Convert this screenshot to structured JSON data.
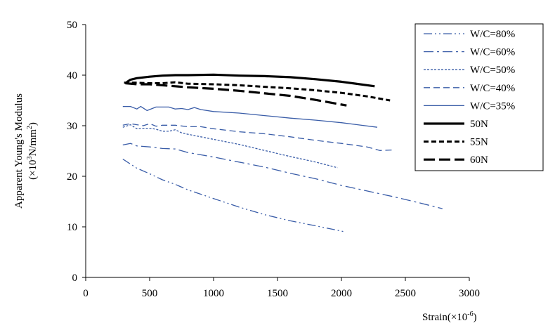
{
  "chart_data": {
    "type": "line",
    "title": "",
    "xlabel": {
      "base": "Strain(×10",
      "sup": "-6",
      "tail": ")"
    },
    "ylabel": {
      "line1": "Apparent  Young's Modulus",
      "line2_base": "(×10",
      "line2_sup1": "3",
      "line2_mid": "N/mm",
      "line2_sup2": "2",
      "line2_tail": ")"
    },
    "xlim": [
      0,
      3000
    ],
    "ylim": [
      0,
      50
    ],
    "xticks": [
      "0",
      "500",
      "1000",
      "1500",
      "2000",
      "2500",
      "3000"
    ],
    "yticks": [
      "0",
      "10",
      "20",
      "30",
      "40",
      "50"
    ],
    "grid": false,
    "legend_position": "top-right",
    "series": [
      {
        "name": "W/C=80%",
        "color": "#3a5da8",
        "style": "dashdotdot",
        "points": [
          [
            290,
            23.4
          ],
          [
            400,
            21.6
          ],
          [
            500,
            20.5
          ],
          [
            600,
            19.3
          ],
          [
            700,
            18.4
          ],
          [
            800,
            17.3
          ],
          [
            1000,
            15.6
          ],
          [
            1200,
            13.9
          ],
          [
            1400,
            12.4
          ],
          [
            1600,
            11.2
          ],
          [
            1800,
            10.2
          ],
          [
            2030,
            9.0
          ]
        ]
      },
      {
        "name": "W/C=60%",
        "color": "#3a5da8",
        "style": "dashdot",
        "points": [
          [
            290,
            26.2
          ],
          [
            350,
            26.5
          ],
          [
            400,
            26.0
          ],
          [
            500,
            25.8
          ],
          [
            600,
            25.5
          ],
          [
            700,
            25.4
          ],
          [
            800,
            24.7
          ],
          [
            1000,
            23.8
          ],
          [
            1200,
            22.8
          ],
          [
            1400,
            21.8
          ],
          [
            1600,
            20.6
          ],
          [
            1800,
            19.5
          ],
          [
            2000,
            18.2
          ],
          [
            2200,
            17.1
          ],
          [
            2400,
            16.0
          ],
          [
            2600,
            14.8
          ],
          [
            2790,
            13.6
          ]
        ]
      },
      {
        "name": "W/C=50%",
        "color": "#3a5da8",
        "style": "dotted",
        "points": [
          [
            290,
            29.7
          ],
          [
            350,
            30.2
          ],
          [
            400,
            29.4
          ],
          [
            450,
            29.5
          ],
          [
            500,
            29.5
          ],
          [
            550,
            29.3
          ],
          [
            600,
            28.9
          ],
          [
            650,
            28.9
          ],
          [
            700,
            29.2
          ],
          [
            750,
            28.6
          ],
          [
            800,
            28.3
          ],
          [
            1000,
            27.3
          ],
          [
            1200,
            26.3
          ],
          [
            1400,
            25.1
          ],
          [
            1600,
            23.9
          ],
          [
            1800,
            22.8
          ],
          [
            1970,
            21.7
          ]
        ]
      },
      {
        "name": "W/C=40%",
        "color": "#3a5da8",
        "style": "dashed",
        "points": [
          [
            290,
            30.1
          ],
          [
            350,
            30.4
          ],
          [
            400,
            30.2
          ],
          [
            450,
            30.0
          ],
          [
            500,
            30.4
          ],
          [
            550,
            29.9
          ],
          [
            600,
            30.1
          ],
          [
            700,
            30.1
          ],
          [
            800,
            29.8
          ],
          [
            900,
            29.8
          ],
          [
            1000,
            29.4
          ],
          [
            1200,
            28.8
          ],
          [
            1400,
            28.4
          ],
          [
            1600,
            27.8
          ],
          [
            1800,
            27.1
          ],
          [
            2000,
            26.5
          ],
          [
            2200,
            25.8
          ],
          [
            2300,
            25.1
          ],
          [
            2400,
            25.2
          ]
        ]
      },
      {
        "name": "W/C=35%",
        "color": "#3a5da8",
        "style": "solid",
        "points": [
          [
            290,
            33.8
          ],
          [
            350,
            33.8
          ],
          [
            400,
            33.3
          ],
          [
            430,
            33.8
          ],
          [
            480,
            33.0
          ],
          [
            550,
            33.7
          ],
          [
            650,
            33.7
          ],
          [
            700,
            33.3
          ],
          [
            750,
            33.4
          ],
          [
            800,
            33.2
          ],
          [
            850,
            33.6
          ],
          [
            900,
            33.2
          ],
          [
            1000,
            32.8
          ],
          [
            1200,
            32.5
          ],
          [
            1400,
            32.0
          ],
          [
            1600,
            31.5
          ],
          [
            1800,
            31.1
          ],
          [
            2000,
            30.6
          ],
          [
            2280,
            29.7
          ]
        ]
      },
      {
        "name": "50N",
        "color": "#000000",
        "style": "solid-thick",
        "points": [
          [
            320,
            38.6
          ],
          [
            350,
            39.1
          ],
          [
            400,
            39.4
          ],
          [
            500,
            39.7
          ],
          [
            600,
            39.9
          ],
          [
            700,
            40.0
          ],
          [
            800,
            40.0
          ],
          [
            1000,
            40.1
          ],
          [
            1200,
            39.9
          ],
          [
            1400,
            39.8
          ],
          [
            1600,
            39.6
          ],
          [
            1800,
            39.2
          ],
          [
            2000,
            38.7
          ],
          [
            2260,
            37.8
          ]
        ]
      },
      {
        "name": "55N",
        "color": "#000000",
        "style": "dashed-thick",
        "points": [
          [
            300,
            38.5
          ],
          [
            400,
            38.5
          ],
          [
            500,
            38.4
          ],
          [
            600,
            38.4
          ],
          [
            700,
            38.6
          ],
          [
            800,
            38.3
          ],
          [
            1000,
            38.2
          ],
          [
            1200,
            38.0
          ],
          [
            1400,
            37.7
          ],
          [
            1600,
            37.4
          ],
          [
            1800,
            37.0
          ],
          [
            2000,
            36.5
          ],
          [
            2200,
            35.8
          ],
          [
            2380,
            35.0
          ]
        ]
      },
      {
        "name": "60N",
        "color": "#000000",
        "style": "longdash-thick",
        "points": [
          [
            310,
            38.4
          ],
          [
            400,
            38.2
          ],
          [
            500,
            38.2
          ],
          [
            600,
            38.0
          ],
          [
            700,
            37.8
          ],
          [
            800,
            37.6
          ],
          [
            1000,
            37.3
          ],
          [
            1200,
            36.9
          ],
          [
            1400,
            36.4
          ],
          [
            1600,
            35.9
          ],
          [
            1800,
            35.1
          ],
          [
            2040,
            34.0
          ]
        ]
      }
    ]
  }
}
